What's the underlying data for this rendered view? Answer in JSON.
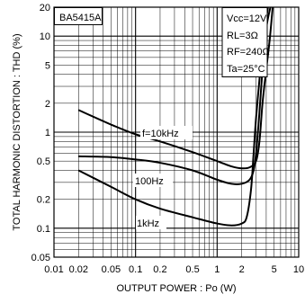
{
  "chart_data": {
    "type": "line",
    "title": "",
    "device_label": "BA5415A",
    "conditions": [
      "Vcc=12V",
      "RL=3Ω",
      "RF=240Ω",
      "Ta=25°C"
    ],
    "xlabel": "OUTPUT  POWER : Po (W)",
    "ylabel": "TOTAL  HARMONIC  DISTORTION : THD (%)",
    "x_scale": "log",
    "y_scale": "log",
    "xlim": [
      0.01,
      10
    ],
    "ylim": [
      0.05,
      20
    ],
    "x_ticks": [
      {
        "value": 0.01,
        "label": "0.01"
      },
      {
        "value": 0.02,
        "label": "0.02"
      },
      {
        "value": 0.05,
        "label": "0.05"
      },
      {
        "value": 0.1,
        "label": "0.1"
      },
      {
        "value": 0.2,
        "label": "0.2"
      },
      {
        "value": 0.5,
        "label": "0.5"
      },
      {
        "value": 1,
        "label": "1"
      },
      {
        "value": 2,
        "label": "2"
      },
      {
        "value": 5,
        "label": "5"
      },
      {
        "value": 10,
        "label": "10"
      }
    ],
    "y_ticks": [
      {
        "value": 0.05,
        "label": "0.05"
      },
      {
        "value": 0.1,
        "label": "0.1"
      },
      {
        "value": 0.2,
        "label": "0.2"
      },
      {
        "value": 0.5,
        "label": "0.5"
      },
      {
        "value": 1,
        "label": "1"
      },
      {
        "value": 2,
        "label": "2"
      },
      {
        "value": 5,
        "label": "5"
      },
      {
        "value": 10,
        "label": "10"
      },
      {
        "value": 20,
        "label": "20"
      }
    ],
    "grid": true,
    "series": [
      {
        "name": "f=10kHz",
        "x": [
          0.02,
          0.05,
          0.1,
          0.2,
          0.5,
          1,
          1.5,
          2,
          2.5,
          3,
          3.3,
          3.6,
          4,
          4.4,
          4.8
        ],
        "y": [
          1.7,
          1.2,
          0.95,
          0.8,
          0.62,
          0.5,
          0.44,
          0.42,
          0.43,
          0.5,
          0.8,
          2.0,
          4.5,
          9.0,
          20
        ]
      },
      {
        "name": "100Hz",
        "x": [
          0.02,
          0.05,
          0.1,
          0.2,
          0.5,
          1,
          1.5,
          2,
          2.5,
          2.8,
          3,
          3.3,
          3.6,
          4,
          4.5
        ],
        "y": [
          0.56,
          0.55,
          0.52,
          0.48,
          0.4,
          0.32,
          0.29,
          0.29,
          0.32,
          0.4,
          0.6,
          1.6,
          4.5,
          12,
          20
        ]
      },
      {
        "name": "1kHz",
        "x": [
          0.02,
          0.05,
          0.1,
          0.2,
          0.5,
          1,
          1.5,
          2,
          2.3,
          2.6,
          2.8,
          3,
          3.3,
          3.6,
          4.2
        ],
        "y": [
          0.4,
          0.27,
          0.2,
          0.16,
          0.13,
          0.112,
          0.107,
          0.112,
          0.13,
          0.25,
          0.6,
          1.4,
          3.5,
          8,
          20
        ]
      }
    ]
  }
}
